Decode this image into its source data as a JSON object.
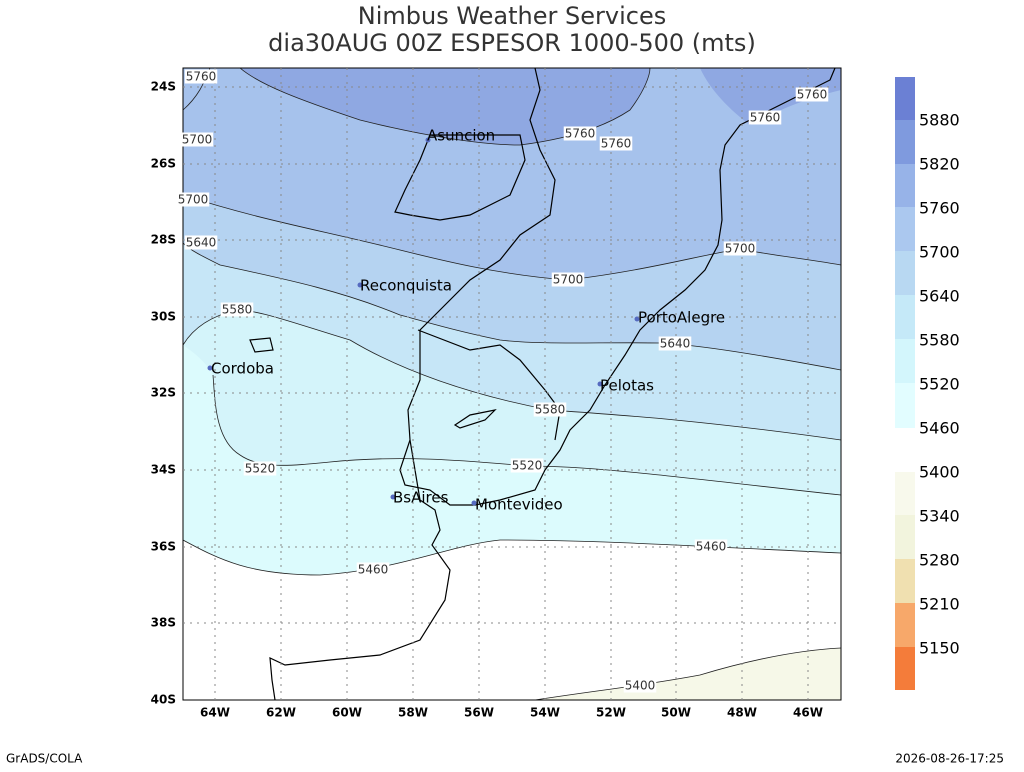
{
  "header": {
    "title": "Nimbus Weather Services",
    "subtitle": "dia30AUG 00Z ESPESOR 1000-500 (mts)"
  },
  "lat_labels": [
    "24S",
    "26S",
    "28S",
    "30S",
    "32S",
    "34S",
    "36S",
    "38S",
    "40S"
  ],
  "lon_labels": [
    "64W",
    "62W",
    "60W",
    "58W",
    "56W",
    "54W",
    "52W",
    "50W",
    "48W",
    "46W"
  ],
  "cities": [
    "Asuncion",
    "Reconquista",
    "PortoAlegre",
    "Cordoba",
    "Pelotas",
    "BsAires",
    "Montevideo"
  ],
  "contour_labels": [
    "5760",
    "5700",
    "5700",
    "5640",
    "5580",
    "5520",
    "5460",
    "5760",
    "5760",
    "5760",
    "5700",
    "5700",
    "5640",
    "5580",
    "5520",
    "5460",
    "5400"
  ],
  "colorbar_labels": [
    "5880",
    "5820",
    "5760",
    "5700",
    "5640",
    "5580",
    "5520",
    "5460",
    "5400",
    "5340",
    "5280",
    "5210",
    "5150"
  ],
  "footer": {
    "left": "GrADS/COLA",
    "right": "2026-08-26-17:25"
  }
}
